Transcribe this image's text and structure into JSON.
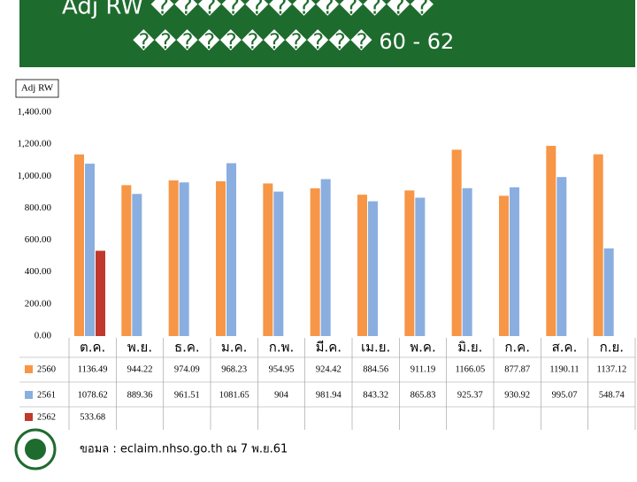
{
  "chart_data": {
    "type": "bar",
    "title": "Adj RW ������������",
    "subtitle": "����������� 60 - 62",
    "ylabel": "Adj RW",
    "categories": [
      "ต.ค.",
      "พ.ย.",
      "ธ.ค.",
      "ม.ค.",
      "ก.พ.",
      "มี.ค.",
      "เม.ย.",
      "พ.ค.",
      "มิ.ย.",
      "ก.ค.",
      "ส.ค.",
      "ก.ย."
    ],
    "series": [
      {
        "name": "2560",
        "color": "#f79646",
        "values": [
          1136.49,
          944.22,
          974.09,
          968.23,
          954.95,
          924.42,
          884.56,
          911.19,
          1166.05,
          877.87,
          1190.11,
          1137.12
        ]
      },
      {
        "name": "2561",
        "color": "#8aaee0",
        "values": [
          1078.62,
          889.36,
          961.51,
          1081.65,
          904,
          981.94,
          843.32,
          865.83,
          925.37,
          930.92,
          995.07,
          548.74
        ]
      },
      {
        "name": "2562",
        "color": "#c0392b",
        "values": [
          533.68,
          null,
          null,
          null,
          null,
          null,
          null,
          null,
          null,
          null,
          null,
          null
        ]
      }
    ],
    "ylim": [
      0,
      1400
    ],
    "yticks": [
      {
        "value": 0,
        "label": "0.00"
      },
      {
        "value": 200,
        "label": "200.00"
      },
      {
        "value": 400,
        "label": "400.00"
      },
      {
        "value": 600,
        "label": "600.00"
      },
      {
        "value": 800,
        "label": "800.00"
      },
      {
        "value": 1000,
        "label": "1,000.00"
      },
      {
        "value": 1200,
        "label": "1,200.00"
      },
      {
        "value": 1400,
        "label": "1,400.00"
      }
    ],
    "source": "ขอมล  : eclaim.nhso.go.th  ณ 7 พ.ย.61"
  }
}
